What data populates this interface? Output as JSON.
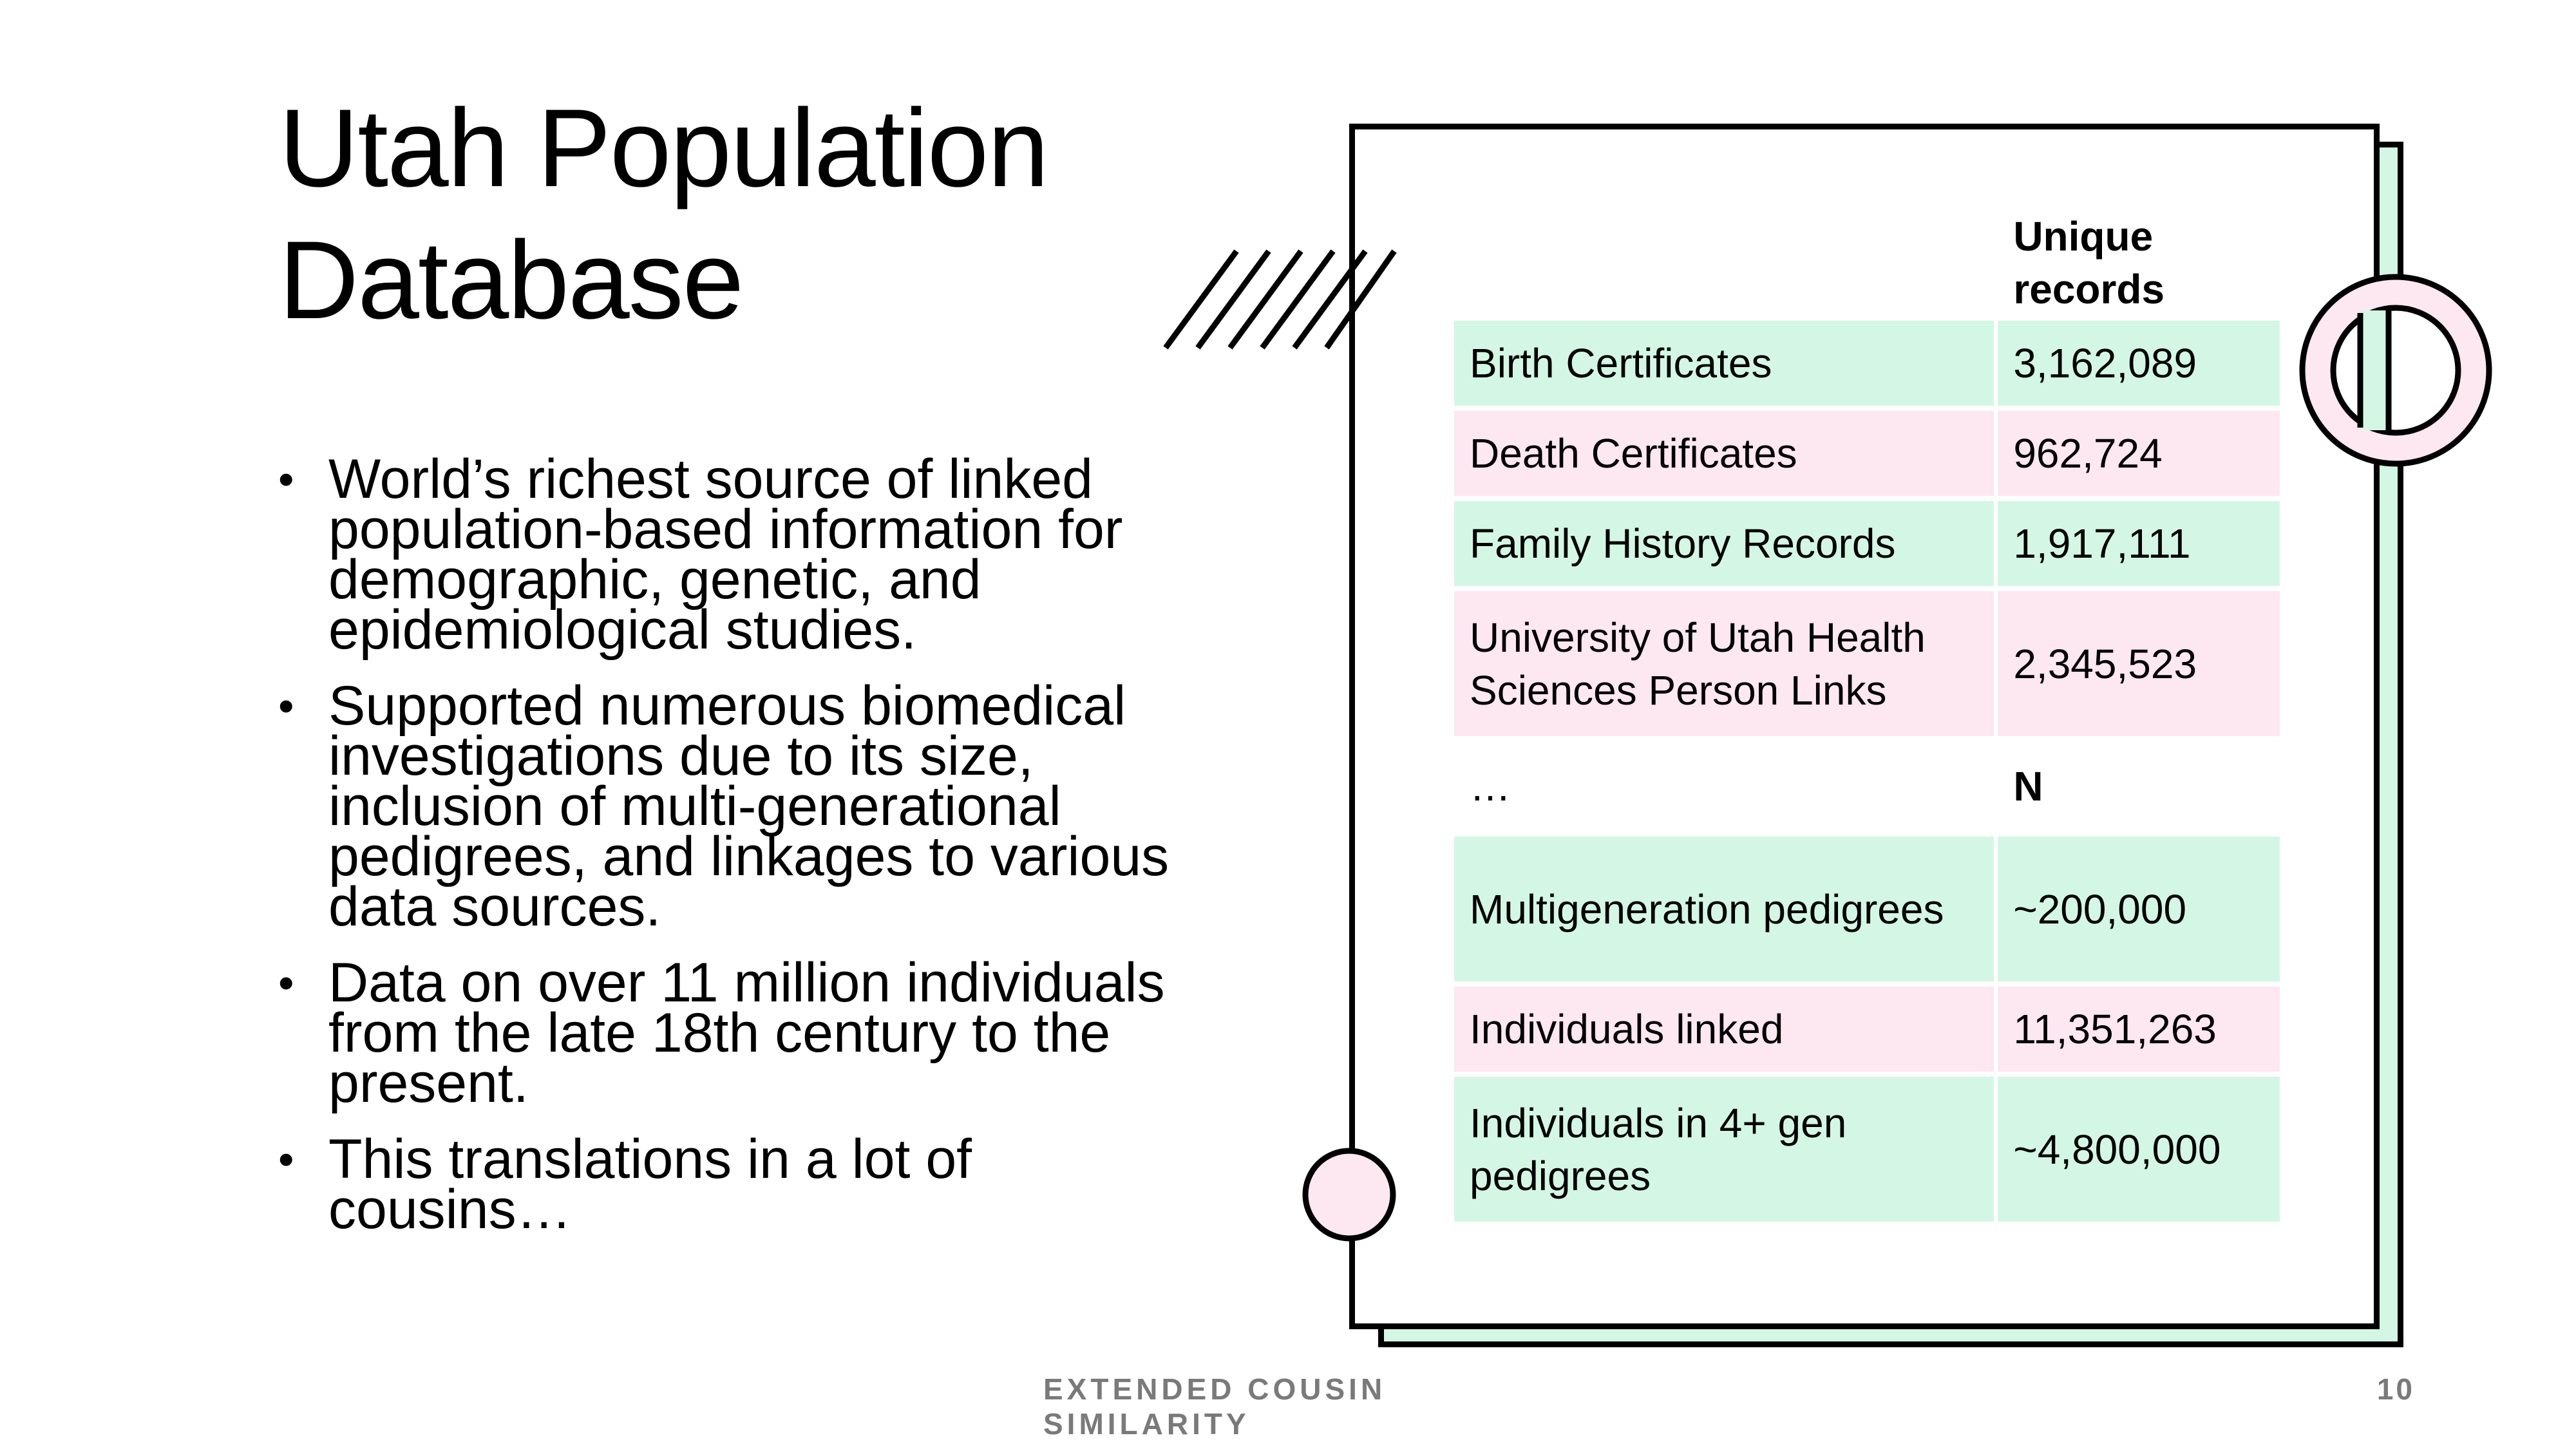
{
  "slide": {
    "title_line1": "Utah Population",
    "title_line2": "Database",
    "bullets": [
      "World’s richest source of linked population-based information for demographic, genetic, and epidemiological studies.",
      "Supported numerous biomedical investigations due to its size, inclusion of multi-generational pedigrees, and linkages to various data sources.",
      "Data on over 11 million individuals from the late 18th century to the present.",
      "This translations in a lot of cousins…"
    ],
    "bullet_glyph": "•",
    "footer": "EXTENDED COUSIN SIMILARITY",
    "page_number": "10"
  },
  "table": {
    "header": {
      "col1": "",
      "col2": "Unique records"
    },
    "rows_a": [
      {
        "label": "Birth Certificates",
        "value": "3,162,089"
      },
      {
        "label": "Death Certificates",
        "value": "962,724"
      },
      {
        "label": "Family History Records",
        "value": "1,917,111"
      },
      {
        "label": "University of Utah Health Sciences Person Links",
        "value": "2,345,523"
      }
    ],
    "separator": {
      "col1": "…",
      "col2": "N"
    },
    "rows_b": [
      {
        "label": "Multigeneration pedigrees",
        "value": "~200,000"
      },
      {
        "label": "Individuals linked",
        "value": "11,351,263"
      },
      {
        "label": "Individuals in 4+ gen pedigrees",
        "value": "~4,800,000"
      }
    ]
  },
  "colors": {
    "green": "#d3f7e4",
    "pink": "#fde7f1",
    "footer_gray": "#7a7a7a"
  }
}
